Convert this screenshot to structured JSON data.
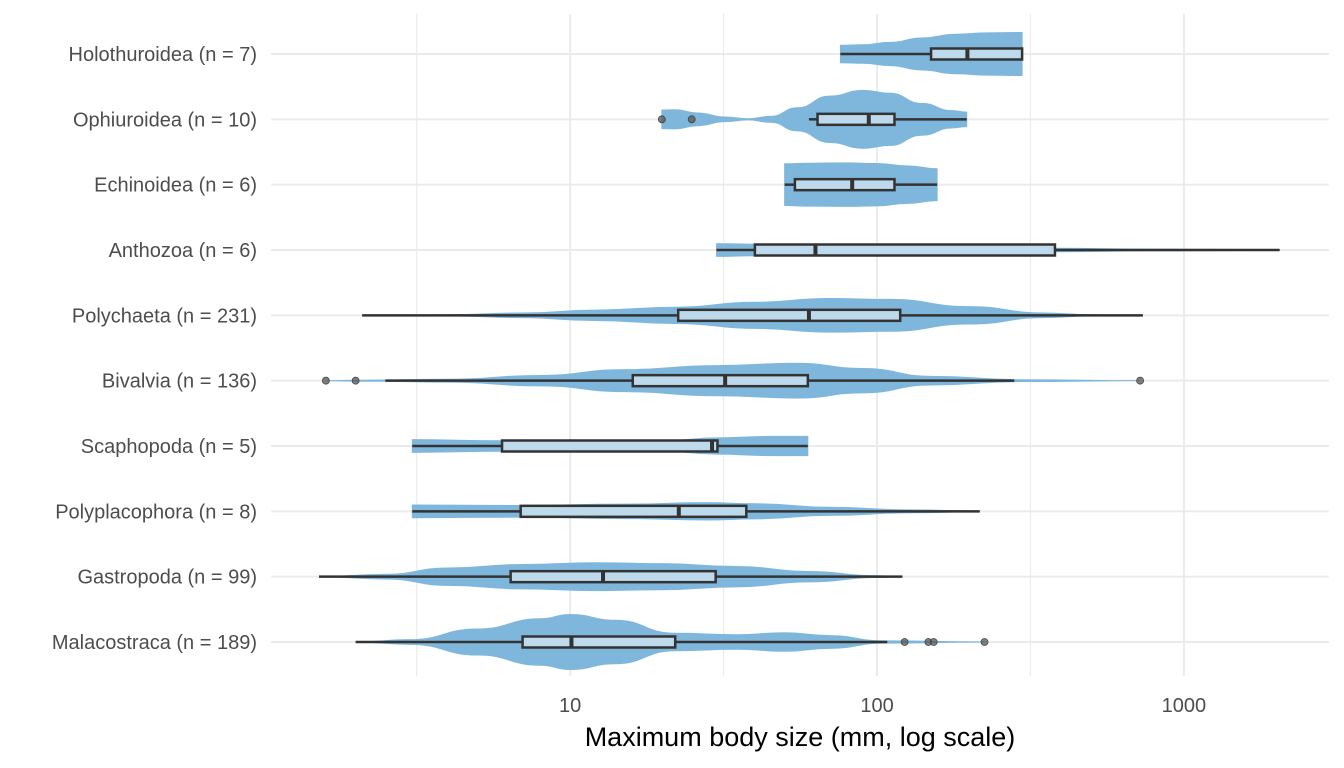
{
  "chart_data": {
    "type": "violin+box",
    "title": "",
    "xlabel": "Maximum body size (mm, log scale)",
    "ylabel": "",
    "x_scale": "log10",
    "xlim": [
      1.06,
      2970
    ],
    "x_ticks": [
      10,
      100,
      1000
    ],
    "x_tick_labels": [
      "10",
      "100",
      "1000"
    ],
    "grid": true,
    "legend": "none",
    "colors": {
      "violin_fill": "#7fb7dc",
      "box_fill": "#bdd9ec",
      "box_stroke": "#333333",
      "outlier": "#555555",
      "grid": "#ebebeb"
    },
    "categories": [
      "Holothuroidea (n = 7)",
      "Ophiuroidea (n = 10)",
      "Echinoidea (n = 6)",
      "Anthozoa (n = 6)",
      "Polychaeta (n = 231)",
      "Bivalvia (n = 136)",
      "Scaphopoda (n = 5)",
      "Polyplacophora (n = 8)",
      "Gastropoda (n = 99)",
      "Malacostraca (n = 189)"
    ],
    "series": [
      {
        "name": "Holothuroidea",
        "n": 7,
        "whisker_low": 76,
        "q1": 150,
        "median": 197,
        "q3": 297,
        "whisker_high": 297,
        "outliers": [],
        "violin": [
          [
            76,
            0.3
          ],
          [
            90,
            0.32
          ],
          [
            110,
            0.4
          ],
          [
            140,
            0.55
          ],
          [
            180,
            0.68
          ],
          [
            230,
            0.73
          ],
          [
            297,
            0.74
          ]
        ]
      },
      {
        "name": "Ophiuroidea",
        "n": 10,
        "whisker_low": 60,
        "q1": 64,
        "median": 94,
        "q3": 114,
        "whisker_high": 196,
        "outliers": [
          19.9,
          24.9
        ],
        "violin": [
          [
            19.9,
            0.32
          ],
          [
            22,
            0.33
          ],
          [
            26,
            0.22
          ],
          [
            32,
            0.08
          ],
          [
            38,
            0.02
          ],
          [
            45,
            0.1
          ],
          [
            55,
            0.4
          ],
          [
            70,
            0.8
          ],
          [
            90,
            1.0
          ],
          [
            110,
            0.9
          ],
          [
            140,
            0.55
          ],
          [
            175,
            0.3
          ],
          [
            196,
            0.25
          ]
        ]
      },
      {
        "name": "Echinoidea",
        "n": 6,
        "whisker_low": 50,
        "q1": 54,
        "median": 83,
        "q3": 114,
        "whisker_high": 157,
        "outliers": [],
        "violin": [
          [
            50,
            0.72
          ],
          [
            60,
            0.74
          ],
          [
            80,
            0.75
          ],
          [
            100,
            0.73
          ],
          [
            125,
            0.65
          ],
          [
            157,
            0.55
          ]
        ]
      },
      {
        "name": "Anthozoa",
        "n": 6,
        "whisker_low": 30,
        "q1": 40,
        "median": 63,
        "q3": 380,
        "whisker_high": 2050,
        "outliers": [],
        "violin": [
          [
            30,
            0.22
          ],
          [
            40,
            0.2
          ],
          [
            70,
            0.14
          ],
          [
            150,
            0.1
          ],
          [
            380,
            0.06
          ],
          [
            800,
            0.03
          ],
          [
            2050,
            0.01
          ]
        ]
      },
      {
        "name": "Polychaeta",
        "n": 231,
        "whisker_low": 2.1,
        "q1": 22.5,
        "median": 60,
        "q3": 119,
        "whisker_high": 735,
        "outliers": [],
        "violin": [
          [
            2.1,
            0.0
          ],
          [
            4,
            0.02
          ],
          [
            7,
            0.08
          ],
          [
            12,
            0.18
          ],
          [
            22,
            0.28
          ],
          [
            40,
            0.45
          ],
          [
            70,
            0.58
          ],
          [
            110,
            0.55
          ],
          [
            200,
            0.3
          ],
          [
            350,
            0.08
          ],
          [
            500,
            0.02
          ],
          [
            735,
            0.0
          ]
        ]
      },
      {
        "name": "Bivalvia",
        "n": 136,
        "whisker_low": 2.5,
        "q1": 16,
        "median": 32,
        "q3": 59.5,
        "whisker_high": 280,
        "outliers": [
          1.6,
          2.0,
          720
        ],
        "violin": [
          [
            1.6,
            0.0
          ],
          [
            2.2,
            0.02
          ],
          [
            4,
            0.05
          ],
          [
            8,
            0.18
          ],
          [
            15,
            0.38
          ],
          [
            30,
            0.52
          ],
          [
            55,
            0.6
          ],
          [
            90,
            0.42
          ],
          [
            150,
            0.15
          ],
          [
            300,
            0.03
          ],
          [
            720,
            0.0
          ]
        ]
      },
      {
        "name": "Scaphopoda",
        "n": 5,
        "whisker_low": 3.06,
        "q1": 6.0,
        "median": 29,
        "q3": 30.2,
        "whisker_high": 59.5,
        "outliers": [],
        "violin": [
          [
            3.06,
            0.22
          ],
          [
            6,
            0.18
          ],
          [
            12,
            0.16
          ],
          [
            20,
            0.18
          ],
          [
            30,
            0.28
          ],
          [
            45,
            0.33
          ],
          [
            59.5,
            0.33
          ]
        ]
      },
      {
        "name": "Polyplacophora",
        "n": 8,
        "whisker_low": 3.06,
        "q1": 6.9,
        "median": 22.6,
        "q3": 37.5,
        "whisker_high": 216,
        "outliers": [],
        "violin": [
          [
            3.06,
            0.22
          ],
          [
            7,
            0.2
          ],
          [
            15,
            0.25
          ],
          [
            28,
            0.3
          ],
          [
            40,
            0.26
          ],
          [
            70,
            0.14
          ],
          [
            130,
            0.05
          ],
          [
            216,
            0.01
          ]
        ]
      },
      {
        "name": "Gastropoda",
        "n": 99,
        "whisker_low": 1.52,
        "q1": 6.4,
        "median": 12.8,
        "q3": 29.8,
        "whisker_high": 121,
        "outliers": [],
        "violin": [
          [
            1.52,
            0.0
          ],
          [
            2.5,
            0.08
          ],
          [
            4,
            0.3
          ],
          [
            7,
            0.42
          ],
          [
            12,
            0.48
          ],
          [
            20,
            0.45
          ],
          [
            35,
            0.35
          ],
          [
            60,
            0.18
          ],
          [
            100,
            0.03
          ],
          [
            121,
            0.0
          ]
        ]
      },
      {
        "name": "Malacostraca",
        "n": 189,
        "whisker_low": 2.0,
        "q1": 7.0,
        "median": 10.1,
        "q3": 22,
        "whisker_high": 108,
        "outliers": [
          123,
          147,
          153,
          224
        ],
        "violin": [
          [
            2.0,
            0.0
          ],
          [
            3,
            0.08
          ],
          [
            5,
            0.45
          ],
          [
            8,
            0.8
          ],
          [
            10,
            0.95
          ],
          [
            14,
            0.75
          ],
          [
            22,
            0.3
          ],
          [
            35,
            0.25
          ],
          [
            50,
            0.32
          ],
          [
            70,
            0.22
          ],
          [
            105,
            0.04
          ],
          [
            224,
            0.0
          ]
        ]
      }
    ]
  }
}
